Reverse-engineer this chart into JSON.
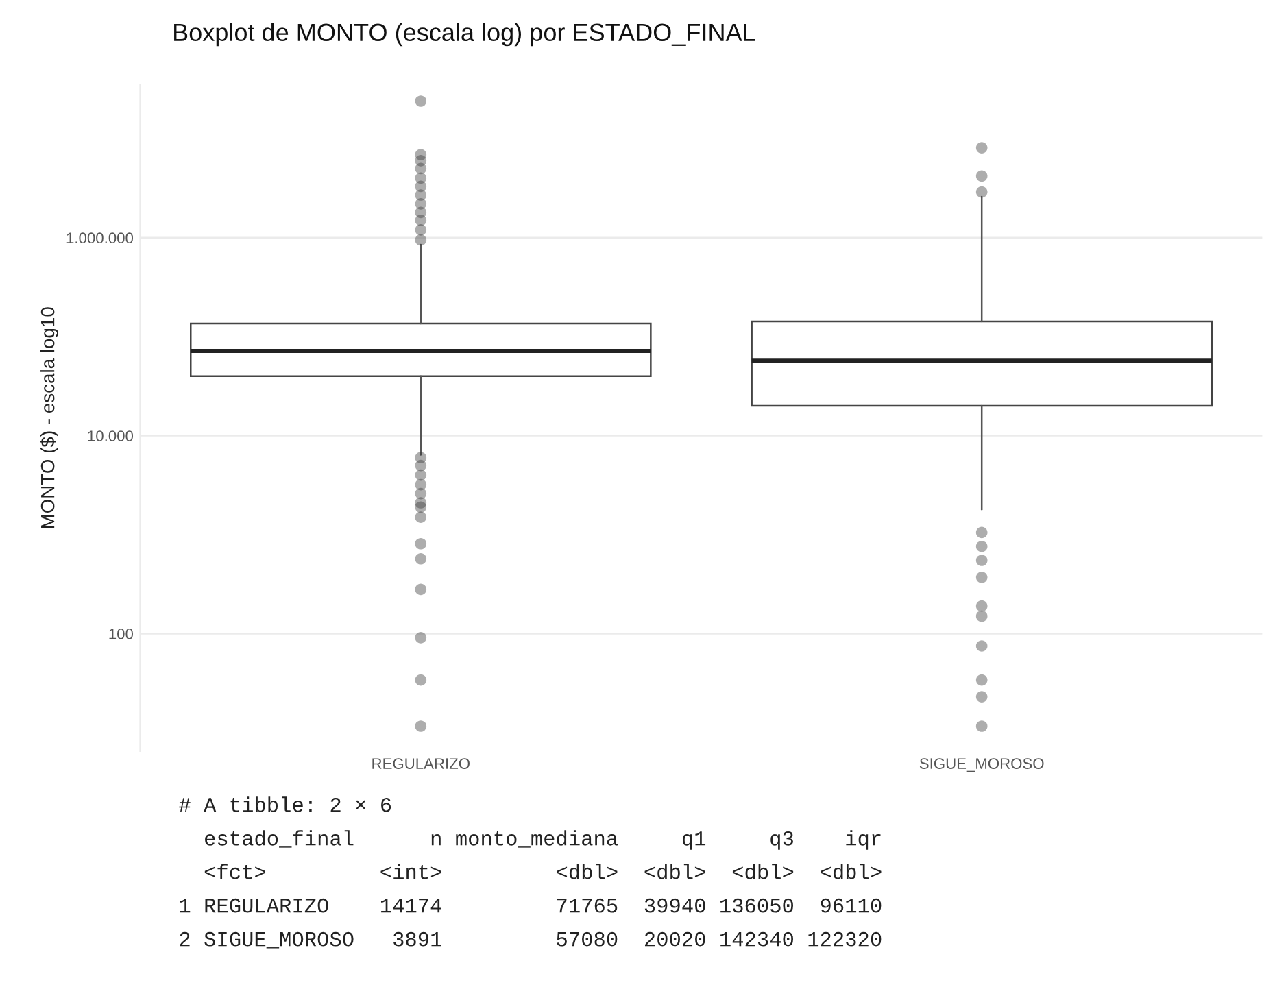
{
  "chart_data": {
    "type": "box",
    "title": "Boxplot de MONTO (escala log) por ESTADO_FINAL",
    "ylabel": "MONTO ($) - escala log10",
    "categories": [
      "REGULARIZO",
      "SIGUE_MOROSO"
    ],
    "boxes": [
      {
        "low": 6400,
        "q1": 39940,
        "median": 71765,
        "q3": 136050,
        "high": 850000,
        "outliers": [
          11.6,
          34,
          91,
          280,
          570,
          810,
          1500,
          1900,
          2100,
          2600,
          3200,
          4000,
          5000,
          6000,
          950000,
          1200000,
          1500000,
          1800000,
          2200000,
          2700000,
          3300000,
          4000000,
          5000000,
          6000000,
          6900000,
          24000000
        ]
      },
      {
        "low": 1800,
        "q1": 20020,
        "median": 57080,
        "q3": 142340,
        "high": 2600000,
        "outliers": [
          11.6,
          23,
          34,
          75,
          150,
          190,
          370,
          550,
          760,
          1050,
          2900000,
          4200000,
          8100000
        ]
      }
    ],
    "log": "y",
    "ylim": [
      6.5,
      35000000
    ],
    "yticks": [
      {
        "value": 100,
        "label": "100"
      },
      {
        "value": 10000,
        "label": "10.000"
      },
      {
        "value": 1000000,
        "label": "1.000.000"
      }
    ],
    "grid": "y",
    "marker": "circle",
    "annotations": [
      "# A tibble: 2 × 6",
      "  estado_final      n monto_mediana     q1     q3    iqr",
      "  <fct>         <int>         <dbl>  <dbl>  <dbl>  <dbl>",
      "1 REGULARIZO    14174         71765  39940 136050  96110",
      "2 SIGUE_MOROSO   3891         57080  20020 142340 122320"
    ]
  }
}
